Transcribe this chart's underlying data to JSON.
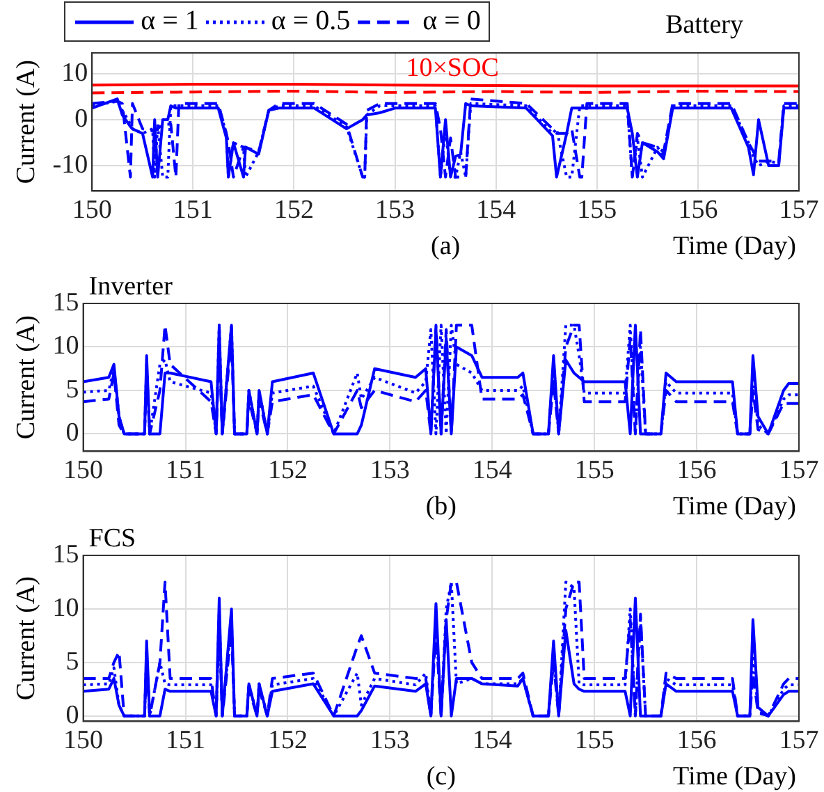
{
  "chart_data": [
    {
      "type": "line",
      "title": "Battery",
      "xlabel": "Time (Day)",
      "ylabel": "Current (A)",
      "xlim": [
        150,
        157
      ],
      "xticks": [
        150,
        151,
        152,
        153,
        154,
        155,
        156,
        157
      ],
      "ylim": [
        -15.5,
        14.5
      ],
      "yticks": [
        -10,
        0,
        10
      ],
      "grid": true,
      "legend": "top left",
      "annotations": [
        "10×SOC",
        "(a)"
      ],
      "x": [
        150,
        150.25,
        150.3,
        150.38,
        150.4,
        150.5,
        150.6,
        150.62,
        150.65,
        150.7,
        150.75,
        150.78,
        150.83,
        150.86,
        151.25,
        151.33,
        151.35,
        151.4,
        151.5,
        151.52,
        151.65,
        151.75,
        151.85,
        152.2,
        152.52,
        152.68,
        152.7,
        152.72,
        152.85,
        153,
        153.4,
        153.45,
        153.5,
        153.55,
        153.6,
        153.65,
        153.7,
        153.75,
        154.3,
        154.56,
        154.6,
        154.7,
        154.75,
        154.83,
        154.85,
        154.9,
        155.3,
        155.35,
        155.4,
        155.45,
        155.6,
        155.66,
        155.75,
        156.33,
        156.5,
        156.55,
        156.6,
        156.7,
        156.8,
        156.85,
        157
      ],
      "series": [
        {
          "name": "α = 1",
          "color": "#0000ff",
          "line_style": "solid",
          "values": [
            2.5,
            4.5,
            1,
            -1.5,
            -2,
            -3,
            -12.5,
            0,
            -12.5,
            0,
            0,
            3,
            2.5,
            2.5,
            2.5,
            -4,
            -12.5,
            -5,
            -12.5,
            -6,
            -7.5,
            2,
            2.5,
            2.5,
            -2,
            0,
            0.5,
            1,
            1.5,
            2.5,
            2.5,
            -12.5,
            0,
            -12.5,
            -8,
            -7.5,
            3.5,
            3,
            2.5,
            -3.5,
            -12.5,
            -3,
            2.5,
            2.5,
            2.5,
            2.5,
            2.5,
            -3,
            -12.5,
            -5,
            -7,
            -8.5,
            2.5,
            2.5,
            -6,
            -12,
            0,
            -10,
            -10,
            2.5,
            2.5
          ]
        },
        {
          "name": "α = 0.5",
          "color": "#0000ff",
          "line_style": "dotted",
          "values": [
            3,
            4,
            2,
            -1,
            -2,
            -3,
            -2,
            -12.5,
            -1,
            -12.5,
            -12.5,
            3,
            3,
            3,
            3,
            -3,
            -12.5,
            -5,
            -6,
            -12.5,
            -7,
            2,
            3,
            3,
            -1.5,
            -12.5,
            -12.5,
            1,
            3,
            3,
            3,
            -12.5,
            -2,
            -12.5,
            -12.5,
            -7,
            -12.5,
            3.5,
            3,
            -3,
            -2,
            -12.5,
            -12.5,
            3,
            3,
            3,
            3,
            -12.5,
            -4,
            -12.5,
            -6,
            -8,
            3,
            3,
            -5,
            -8,
            -10,
            -9,
            -9.5,
            3,
            3
          ]
        },
        {
          "name": "α = 0",
          "color": "#0000ff",
          "line_style": "dashed",
          "values": [
            3.5,
            4,
            3.5,
            -12.5,
            3.5,
            -2,
            -2.5,
            -2,
            -2,
            -1,
            -1,
            -1,
            -12.5,
            3.5,
            3.5,
            -3,
            -5,
            -12.5,
            -6,
            -6,
            -7,
            2,
            3.5,
            3.5,
            -1,
            -12.5,
            -12.5,
            2,
            3.5,
            3.5,
            3.5,
            -2,
            -12.5,
            -4,
            -12.5,
            -12.5,
            -12.5,
            4.5,
            3.5,
            -2,
            -3,
            -3,
            -2,
            -12.5,
            -12.5,
            3.5,
            3.5,
            -12.5,
            -3,
            -5,
            -6,
            -7,
            3.5,
            3.5,
            -5,
            -7,
            -9,
            -9,
            -9,
            3.5,
            3.5
          ]
        },
        {
          "color": "#ff0000",
          "line_style": "solid",
          "x": [
            150,
            151,
            152,
            153,
            154,
            155,
            156,
            157
          ],
          "values": [
            7.5,
            7.7,
            7.7,
            7.5,
            7.4,
            7.3,
            7.3,
            7.3
          ]
        },
        {
          "color": "#ff0000",
          "line_style": "dashed",
          "x": [
            150,
            151,
            152,
            153,
            154,
            155,
            156,
            157
          ],
          "values": [
            5.8,
            6,
            6.2,
            5.9,
            6.1,
            5.9,
            6.2,
            6.1
          ]
        }
      ]
    },
    {
      "type": "line",
      "title": "Inverter",
      "xlabel": "Time (Day)",
      "ylabel": "Current (A)",
      "xlim": [
        150,
        157
      ],
      "xticks": [
        150,
        151,
        152,
        153,
        154,
        155,
        156,
        157
      ],
      "ylim": [
        -2,
        15
      ],
      "yticks": [
        0,
        5,
        10,
        15
      ],
      "grid": true,
      "annotations": [
        "(b)"
      ],
      "x": [
        150,
        150.25,
        150.3,
        150.35,
        150.4,
        150.6,
        150.62,
        150.65,
        150.75,
        150.8,
        150.85,
        151.25,
        151.3,
        151.33,
        151.36,
        151.45,
        151.48,
        151.6,
        151.62,
        151.7,
        151.72,
        151.8,
        151.85,
        152.25,
        152.45,
        152.68,
        152.72,
        152.85,
        153.25,
        153.35,
        153.4,
        153.45,
        153.5,
        153.55,
        153.6,
        153.65,
        153.8,
        153.9,
        154.25,
        154.3,
        154.4,
        154.55,
        154.6,
        154.65,
        154.72,
        154.8,
        154.85,
        154.9,
        155.3,
        155.35,
        155.4,
        155.45,
        155.5,
        155.65,
        155.7,
        155.8,
        156.35,
        156.4,
        156.52,
        156.55,
        156.6,
        156.7,
        156.85,
        156.9,
        157
      ],
      "series": [
        {
          "color": "#0000ff",
          "line_style": "solid",
          "values": [
            6,
            6.5,
            8,
            2,
            0,
            0,
            9,
            0,
            0,
            7,
            7,
            6,
            0,
            12.5,
            0,
            12.5,
            0,
            0,
            5,
            0,
            5,
            0,
            6,
            7,
            0,
            0,
            1,
            7.5,
            6.5,
            7.5,
            0,
            12,
            0,
            11,
            0,
            10,
            9,
            6.5,
            6.5,
            7,
            0,
            0,
            9,
            0,
            8.5,
            7,
            6.5,
            6,
            6,
            0,
            12.5,
            0,
            0,
            0,
            7,
            6,
            6,
            0,
            0,
            9,
            2,
            0,
            5,
            5.8,
            5.8
          ]
        },
        {
          "color": "#0000ff",
          "line_style": "dotted",
          "values": [
            4.8,
            5,
            7.5,
            2,
            0,
            0,
            8,
            0,
            8,
            8.5,
            6,
            4.7,
            0,
            12.5,
            0,
            12.5,
            0,
            0,
            5,
            0,
            5,
            0,
            4.7,
            5.5,
            0,
            7,
            4,
            6.5,
            4.7,
            6,
            12,
            0,
            12.5,
            0,
            12.5,
            8,
            7,
            5,
            5,
            5.5,
            0,
            0,
            8,
            0,
            12.5,
            12.5,
            9,
            4.7,
            4.7,
            12.5,
            0,
            10,
            0,
            0,
            6,
            4.7,
            4.7,
            0,
            0,
            7,
            1,
            0,
            4,
            4.5,
            4.5
          ]
        },
        {
          "color": "#0000ff",
          "line_style": "dashed",
          "values": [
            3.7,
            4,
            7,
            1,
            0,
            0,
            7,
            0,
            5,
            12.5,
            8,
            3.7,
            0,
            10,
            0,
            11,
            0,
            0,
            4,
            0,
            4,
            0,
            3.7,
            4.5,
            0,
            5,
            3,
            5,
            3.7,
            5,
            0,
            12.5,
            0,
            12,
            0,
            12.5,
            12.5,
            4,
            4,
            4.5,
            0,
            0,
            6,
            0,
            10,
            12.5,
            12.5,
            3.7,
            3.7,
            11,
            0,
            12,
            0,
            0,
            5,
            3.7,
            3.7,
            0,
            0,
            5,
            0.5,
            0,
            3.5,
            3.5,
            3.5
          ]
        }
      ]
    },
    {
      "type": "line",
      "title": "FCS",
      "xlabel": "Time (Day)",
      "ylabel": "Current (A)",
      "xlim": [
        150,
        157
      ],
      "xticks": [
        150,
        151,
        152,
        153,
        154,
        155,
        156,
        157
      ],
      "ylim": [
        -0.5,
        15
      ],
      "yticks": [
        0,
        5,
        10,
        15
      ],
      "grid": true,
      "annotations": [
        "(c)"
      ],
      "x": [
        150,
        150.25,
        150.3,
        150.35,
        150.4,
        150.6,
        150.62,
        150.65,
        150.75,
        150.8,
        150.85,
        151.25,
        151.3,
        151.33,
        151.36,
        151.45,
        151.48,
        151.6,
        151.62,
        151.7,
        151.72,
        151.8,
        151.85,
        152.25,
        152.45,
        152.68,
        152.72,
        152.85,
        153.25,
        153.35,
        153.4,
        153.45,
        153.5,
        153.55,
        153.6,
        153.65,
        153.8,
        153.9,
        154.25,
        154.3,
        154.4,
        154.55,
        154.6,
        154.65,
        154.72,
        154.8,
        154.85,
        154.9,
        155.3,
        155.35,
        155.4,
        155.45,
        155.5,
        155.65,
        155.7,
        155.8,
        156.35,
        156.4,
        156.52,
        156.55,
        156.6,
        156.7,
        156.85,
        156.9,
        157
      ],
      "series": [
        {
          "color": "#0000ff",
          "line_style": "solid",
          "values": [
            2.3,
            2.5,
            3.5,
            1,
            0,
            0,
            7,
            0,
            0,
            2.5,
            2.3,
            2.3,
            0,
            11,
            0,
            10,
            0,
            0,
            3,
            0,
            3,
            0,
            2.3,
            3,
            0,
            0,
            0.5,
            2.8,
            2.3,
            3,
            0,
            10.5,
            0,
            9,
            0,
            3.5,
            3.5,
            3,
            2.8,
            3.5,
            0,
            0,
            7,
            0,
            8,
            3,
            2.5,
            2.3,
            2.3,
            0,
            11,
            0,
            0,
            0,
            3,
            2.3,
            2.3,
            0,
            0,
            9,
            0.8,
            0,
            2,
            2.3,
            2.3
          ]
        },
        {
          "color": "#0000ff",
          "line_style": "dotted",
          "values": [
            2.9,
            3,
            4.5,
            1,
            0,
            0,
            6,
            0,
            5,
            3,
            2.9,
            2.9,
            0,
            10,
            0,
            9,
            0,
            0,
            3,
            0,
            3,
            0,
            2.9,
            3.5,
            0,
            4,
            1,
            3.5,
            2.9,
            4,
            0,
            9,
            0,
            10,
            12.5,
            3,
            3.5,
            3,
            3,
            3.5,
            0,
            0,
            6,
            0,
            12.5,
            12,
            3,
            2.9,
            2.9,
            10,
            0,
            9,
            0,
            0,
            3.5,
            2.9,
            2.9,
            0,
            0,
            6,
            0.5,
            0,
            2.5,
            2.9,
            2.9
          ]
        },
        {
          "color": "#0000ff",
          "line_style": "dashed",
          "values": [
            3.5,
            3.5,
            5,
            6,
            0,
            0,
            5,
            0,
            5,
            12.5,
            3.5,
            3.5,
            0,
            9,
            0,
            8,
            0,
            0,
            2.5,
            0,
            2.5,
            0,
            3.5,
            4,
            0,
            6.5,
            7.5,
            4,
            3.5,
            3.5,
            0,
            8,
            0,
            9,
            12.5,
            12.5,
            5,
            3.5,
            3.5,
            4,
            0,
            0,
            5,
            0,
            10,
            12.5,
            12.5,
            3.5,
            3.5,
            9,
            0,
            9.5,
            0,
            0,
            4,
            3.5,
            3.5,
            0,
            0,
            4,
            0.3,
            0,
            3,
            3.5,
            3.5
          ]
        }
      ]
    }
  ]
}
